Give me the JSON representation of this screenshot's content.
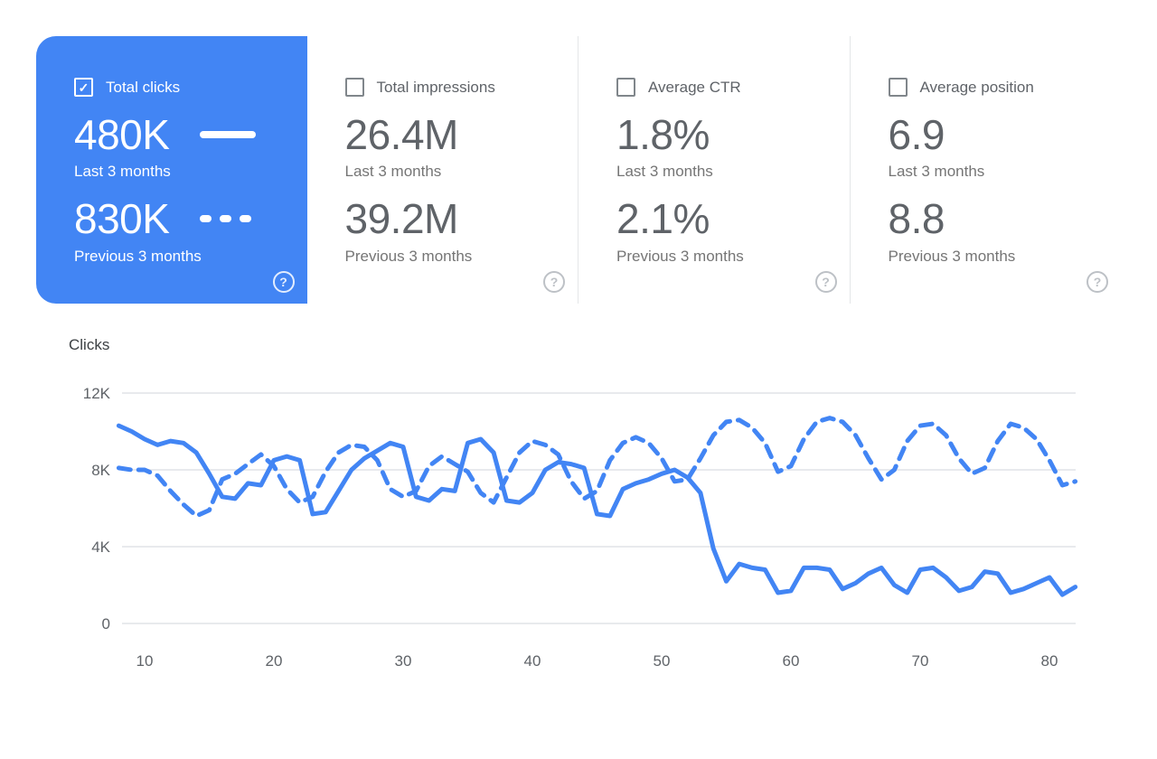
{
  "header_cards": [
    {
      "id": "total-clicks",
      "label": "Total clicks",
      "checked": true,
      "selected": true,
      "current": {
        "value": "480K",
        "caption": "Last 3 months"
      },
      "previous": {
        "value": "830K",
        "caption": "Previous 3 months"
      }
    },
    {
      "id": "total-impressions",
      "label": "Total impressions",
      "checked": false,
      "selected": false,
      "current": {
        "value": "26.4M",
        "caption": "Last 3 months"
      },
      "previous": {
        "value": "39.2M",
        "caption": "Previous 3 months"
      }
    },
    {
      "id": "average-ctr",
      "label": "Average CTR",
      "checked": false,
      "selected": false,
      "current": {
        "value": "1.8%",
        "caption": "Last 3 months"
      },
      "previous": {
        "value": "2.1%",
        "caption": "Previous 3 months"
      }
    },
    {
      "id": "average-position",
      "label": "Average position",
      "checked": false,
      "selected": false,
      "current": {
        "value": "6.9",
        "caption": "Last 3 months"
      },
      "previous": {
        "value": "8.8",
        "caption": "Previous 3 months"
      }
    }
  ],
  "help_icon_glyph": "?",
  "colors": {
    "accent_blue": "#4285f4",
    "grid_line": "#e8eaed",
    "axis_text": "#5f6368",
    "value_text": "#5f6368",
    "caption_text": "#757575"
  },
  "chart_data": {
    "type": "line",
    "title": "Clicks",
    "unit_note": "y values in thousands (K)",
    "xlim": [
      8,
      82
    ],
    "ylim": [
      0,
      12
    ],
    "x_ticks": [
      10,
      20,
      30,
      40,
      50,
      60,
      70,
      80
    ],
    "y_ticks": [
      0,
      4,
      8,
      12
    ],
    "y_tick_labels": [
      "0",
      "4K",
      "8K",
      "12K"
    ],
    "grid": true,
    "legend_position": "in-card",
    "x": [
      8,
      9,
      10,
      11,
      12,
      13,
      14,
      15,
      16,
      17,
      18,
      19,
      20,
      21,
      22,
      23,
      24,
      25,
      26,
      27,
      28,
      29,
      30,
      31,
      32,
      33,
      34,
      35,
      36,
      37,
      38,
      39,
      40,
      41,
      42,
      43,
      44,
      45,
      46,
      47,
      48,
      49,
      50,
      51,
      52,
      53,
      54,
      55,
      56,
      57,
      58,
      59,
      60,
      61,
      62,
      63,
      64,
      65,
      66,
      67,
      68,
      69,
      70,
      71,
      72,
      73,
      74,
      75,
      76,
      77,
      78,
      79,
      80,
      81,
      82
    ],
    "series": [
      {
        "name": "Last 3 months",
        "style": "solid",
        "values": [
          10.3,
          10.0,
          9.6,
          9.3,
          9.5,
          9.4,
          8.9,
          7.8,
          6.6,
          6.5,
          7.3,
          7.2,
          8.5,
          8.7,
          8.5,
          5.7,
          5.8,
          6.9,
          8.0,
          8.6,
          9.0,
          9.4,
          9.2,
          6.6,
          6.4,
          7.0,
          6.9,
          9.4,
          9.6,
          8.9,
          6.4,
          6.3,
          6.8,
          8.0,
          8.4,
          8.3,
          8.1,
          5.7,
          5.6,
          7.0,
          7.3,
          7.5,
          7.8,
          8.0,
          7.6,
          6.8,
          3.9,
          2.2,
          3.1,
          2.9,
          2.8,
          1.6,
          1.7,
          2.9,
          2.9,
          2.8,
          1.8,
          2.1,
          2.6,
          2.9,
          2.0,
          1.6,
          2.8,
          2.9,
          2.4,
          1.7,
          1.9,
          2.7,
          2.6,
          1.6,
          1.8,
          2.1,
          2.4,
          1.5,
          1.9
        ]
      },
      {
        "name": "Previous 3 months",
        "style": "dashed",
        "values": [
          8.1,
          8.0,
          8.0,
          7.7,
          6.9,
          6.2,
          5.6,
          5.9,
          7.5,
          7.8,
          8.3,
          8.8,
          8.2,
          7.0,
          6.3,
          6.6,
          7.9,
          8.9,
          9.3,
          9.2,
          8.5,
          7.0,
          6.6,
          6.9,
          8.2,
          8.7,
          8.3,
          7.9,
          6.8,
          6.3,
          7.6,
          8.9,
          9.5,
          9.3,
          8.8,
          7.4,
          6.5,
          6.9,
          8.5,
          9.4,
          9.7,
          9.4,
          8.6,
          7.4,
          7.5,
          8.6,
          9.8,
          10.5,
          10.6,
          10.2,
          9.4,
          7.9,
          8.2,
          9.6,
          10.5,
          10.7,
          10.5,
          9.8,
          8.6,
          7.5,
          8.0,
          9.5,
          10.3,
          10.4,
          9.8,
          8.6,
          7.8,
          8.1,
          9.5,
          10.4,
          10.2,
          9.6,
          8.5,
          7.2,
          7.4
        ]
      }
    ]
  }
}
